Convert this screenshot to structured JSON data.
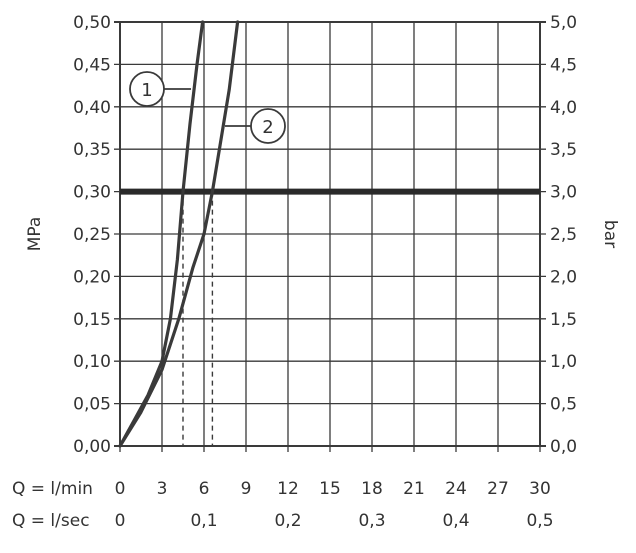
{
  "chart_data": {
    "type": "line",
    "left_axis": {
      "label": "MPa",
      "ticks": [
        "0,00",
        "0,05",
        "0,10",
        "0,15",
        "0,20",
        "0,25",
        "0,30",
        "0,35",
        "0,40",
        "0,45",
        "0,50"
      ],
      "ylim": [
        0,
        0.5
      ]
    },
    "right_axis": {
      "label": "bar",
      "ticks": [
        "0,0",
        "0,5",
        "1,0",
        "1,5",
        "2,0",
        "2,5",
        "3,0",
        "3,5",
        "4,0",
        "4,5",
        "5,0"
      ],
      "ylim": [
        0,
        5
      ]
    },
    "x_axis_lmin": {
      "label": "Q = l/min",
      "ticks": [
        "0",
        "3",
        "6",
        "9",
        "12",
        "15",
        "18",
        "21",
        "24",
        "27",
        "30"
      ],
      "xlim": [
        0,
        30
      ]
    },
    "x_axis_lsec": {
      "label": "Q = l/sec",
      "ticks": [
        "0",
        "0,1",
        "0,2",
        "0,3",
        "0,4",
        "0,5"
      ],
      "tick_values": [
        0,
        6,
        12,
        18,
        24,
        30
      ]
    },
    "grid": true,
    "reference_line": {
      "y": 0.3
    },
    "reference_markers": [
      {
        "x": 4.5,
        "y": 0.3
      },
      {
        "x": 6.6,
        "y": 0.3
      }
    ],
    "series": [
      {
        "name": "1",
        "points": [
          [
            0,
            0
          ],
          [
            1,
            0.03
          ],
          [
            2,
            0.06
          ],
          [
            3,
            0.1
          ],
          [
            3.6,
            0.15
          ],
          [
            4.1,
            0.22
          ],
          [
            4.5,
            0.3
          ],
          [
            5,
            0.38
          ],
          [
            5.5,
            0.45
          ],
          [
            5.9,
            0.5
          ]
        ]
      },
      {
        "name": "2",
        "points": [
          [
            0,
            0
          ],
          [
            1.5,
            0.04
          ],
          [
            3,
            0.09
          ],
          [
            4.2,
            0.15
          ],
          [
            5.2,
            0.21
          ],
          [
            6,
            0.25
          ],
          [
            6.6,
            0.3
          ],
          [
            7.2,
            0.36
          ],
          [
            7.8,
            0.42
          ],
          [
            8.4,
            0.5
          ]
        ]
      }
    ]
  }
}
